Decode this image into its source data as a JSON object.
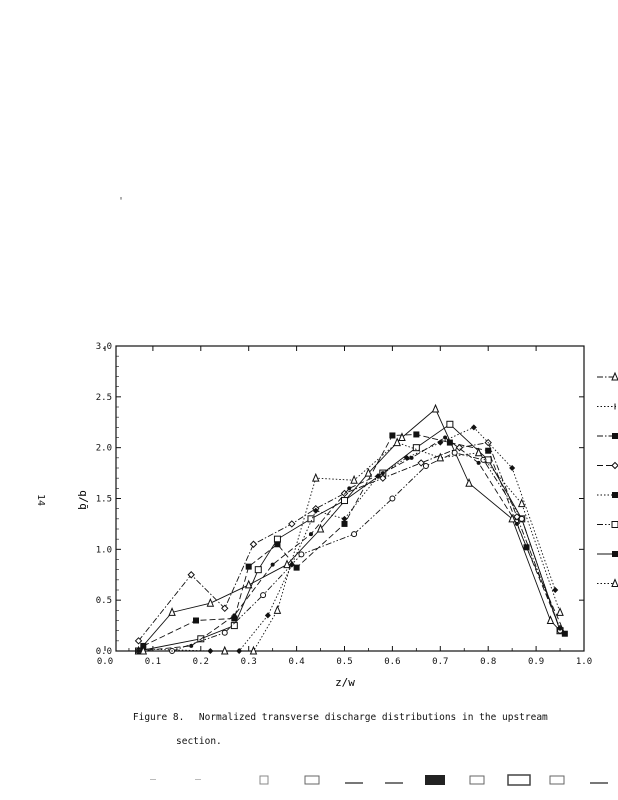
{
  "page_number": "14",
  "stray_mark": "'",
  "caption": {
    "label": "Figure 8.",
    "line1": "Normalized transverse discharge distributions in the upstream",
    "line2": "section."
  },
  "chart_data": {
    "type": "line",
    "title": "",
    "xlabel": "z/w",
    "ylabel": "q/q̄",
    "xlim": [
      0.0,
      1.0
    ],
    "ylim": [
      0.0,
      3.0
    ],
    "x_ticks": [
      "0.0",
      "0.1",
      "0.2",
      "0.3",
      "0.4",
      "0.5",
      "0.6",
      "0.7",
      "0.8",
      "0.9",
      "1.0"
    ],
    "y_ticks": [
      "0.0",
      "0.5",
      "1.0",
      "1.5",
      "2.0",
      "2.5",
      "3.0"
    ],
    "grid": false,
    "legend": "right, entries cut off at page edge",
    "series": [
      {
        "marker": "open-triangle",
        "line": "solid",
        "x": [
          0.07,
          0.14,
          0.22,
          0.3,
          0.38,
          0.45,
          0.55,
          0.62,
          0.69,
          0.76,
          0.85,
          0.93,
          0.95
        ],
        "y": [
          0.0,
          0.38,
          0.47,
          0.65,
          0.85,
          1.2,
          1.75,
          2.1,
          2.38,
          1.65,
          1.3,
          0.3,
          0.2
        ]
      },
      {
        "marker": "open-square",
        "line": "solid",
        "x": [
          0.07,
          0.2,
          0.27,
          0.32,
          0.36,
          0.43,
          0.5,
          0.58,
          0.65,
          0.72,
          0.8,
          0.87,
          0.95
        ],
        "y": [
          0.0,
          0.12,
          0.25,
          0.8,
          1.1,
          1.3,
          1.48,
          1.75,
          2.0,
          2.23,
          1.88,
          1.3,
          0.2
        ]
      },
      {
        "marker": "filled-square",
        "line": "dashed",
        "x": [
          0.08,
          0.19,
          0.27,
          0.3,
          0.36,
          0.4,
          0.5,
          0.6,
          0.65,
          0.72,
          0.8,
          0.88,
          0.96
        ],
        "y": [
          0.05,
          0.3,
          0.32,
          0.83,
          1.05,
          0.82,
          1.25,
          2.12,
          2.13,
          2.05,
          1.97,
          1.02,
          0.17
        ]
      },
      {
        "marker": "open-diamond",
        "line": "dash-dot",
        "x": [
          0.07,
          0.18,
          0.25,
          0.31,
          0.39,
          0.44,
          0.5,
          0.58,
          0.66,
          0.74,
          0.8,
          0.86,
          0.95
        ],
        "y": [
          0.1,
          0.75,
          0.42,
          1.05,
          1.25,
          1.4,
          1.55,
          1.7,
          1.85,
          2.0,
          2.05,
          1.32,
          0.22
        ]
      },
      {
        "marker": "filled-diamond",
        "line": "dotted",
        "x": [
          0.08,
          0.22,
          0.28,
          0.34,
          0.39,
          0.44,
          0.5,
          0.57,
          0.63,
          0.7,
          0.77,
          0.85,
          0.94
        ],
        "y": [
          0.02,
          0.0,
          0.0,
          0.35,
          0.85,
          1.38,
          1.3,
          1.72,
          1.9,
          2.05,
          2.2,
          1.8,
          0.6
        ]
      },
      {
        "marker": "open-circle",
        "line": "dash-dot-dot",
        "x": [
          0.07,
          0.14,
          0.25,
          0.33,
          0.41,
          0.52,
          0.6,
          0.67,
          0.73,
          0.79,
          0.87,
          0.95
        ],
        "y": [
          0.0,
          0.0,
          0.18,
          0.55,
          0.95,
          1.15,
          1.5,
          1.82,
          1.95,
          1.88,
          1.3,
          0.2
        ]
      },
      {
        "marker": "dot",
        "line": "dashed",
        "x": [
          0.07,
          0.18,
          0.27,
          0.35,
          0.43,
          0.51,
          0.58,
          0.64,
          0.71,
          0.78,
          0.86,
          0.95
        ],
        "y": [
          0.0,
          0.05,
          0.35,
          0.85,
          1.15,
          1.6,
          1.75,
          1.9,
          2.1,
          1.85,
          1.25,
          0.22
        ]
      },
      {
        "marker": "open-triangle",
        "line": "dotted",
        "x": [
          0.08,
          0.25,
          0.31,
          0.36,
          0.44,
          0.52,
          0.61,
          0.7,
          0.78,
          0.87,
          0.95
        ],
        "y": [
          0.0,
          0.0,
          0.0,
          0.4,
          1.7,
          1.68,
          2.05,
          1.9,
          1.95,
          1.45,
          0.38
        ]
      }
    ],
    "legend_entries": [
      {
        "line": "dash-dot",
        "marker": "open-triangle"
      },
      {
        "line": "dotted",
        "marker": "tick"
      },
      {
        "line": "dash-dot",
        "marker": "filled-square"
      },
      {
        "line": "dashed",
        "marker": "open-diamond"
      },
      {
        "line": "dotted",
        "marker": "filled-square"
      },
      {
        "line": "dash-dot-dot",
        "marker": "open-square"
      },
      {
        "line": "solid",
        "marker": "filled-square"
      },
      {
        "line": "dotted",
        "marker": "open-triangle"
      }
    ]
  }
}
